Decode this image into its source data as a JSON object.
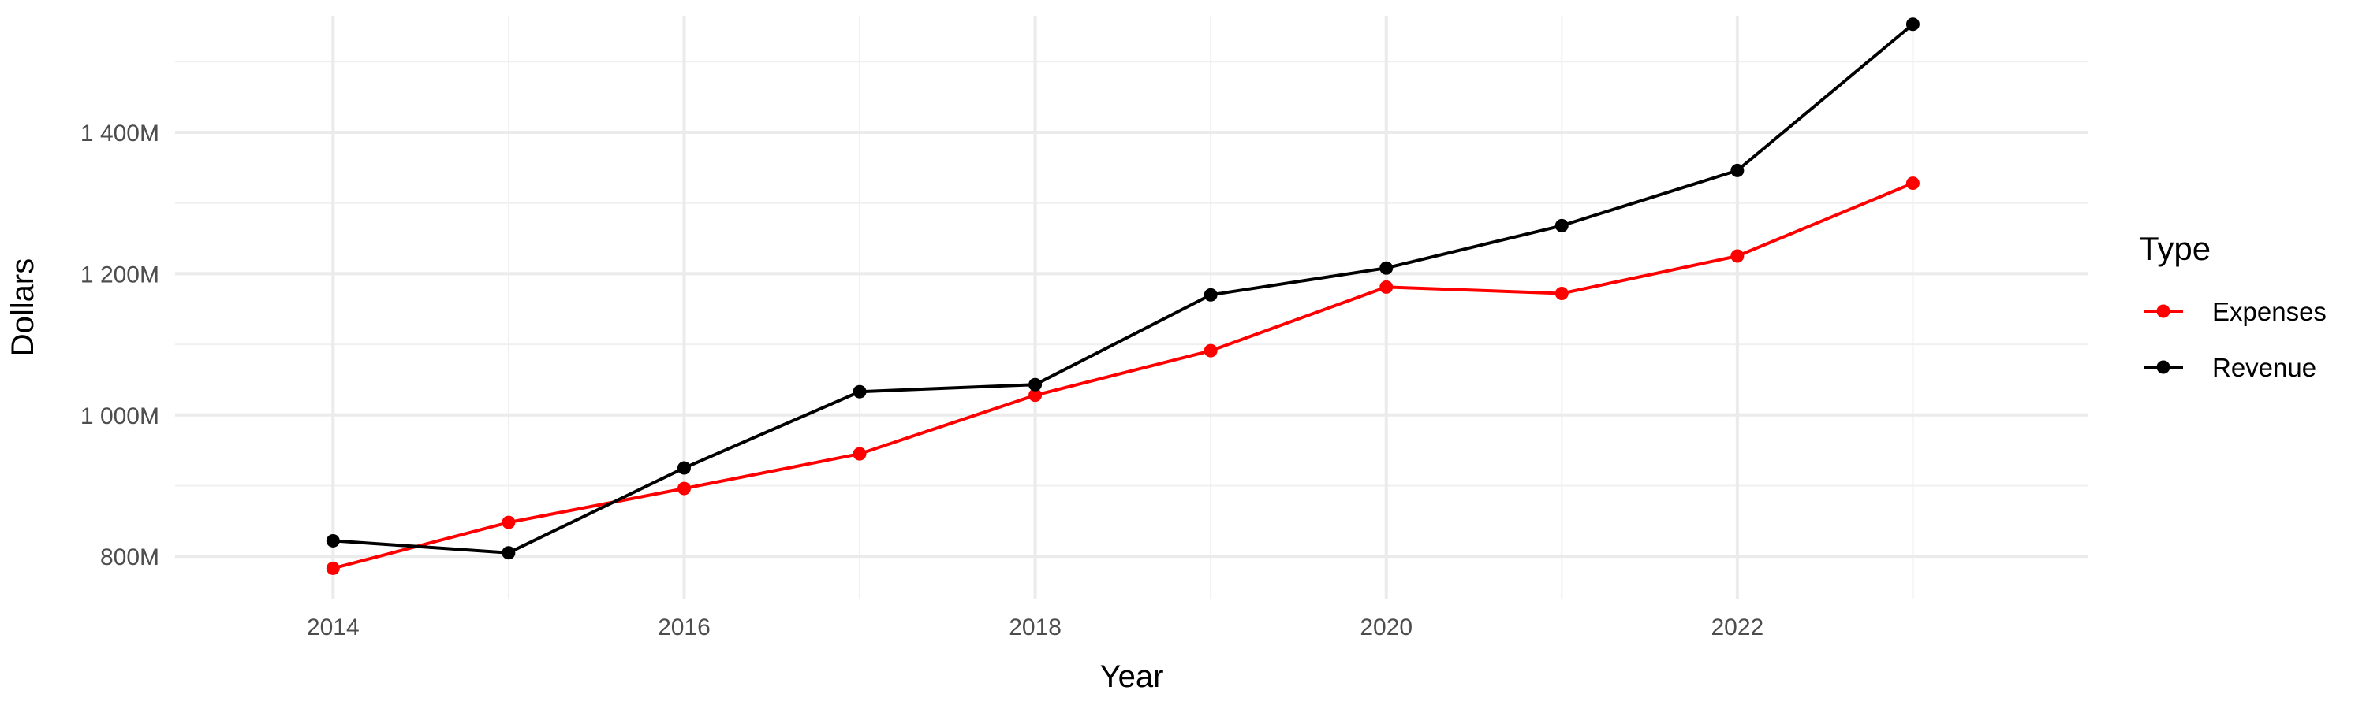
{
  "chart_data": {
    "type": "line",
    "title": "",
    "xlabel": "Year",
    "ylabel": "Dollars",
    "x": [
      2014,
      2015,
      2016,
      2017,
      2018,
      2019,
      2020,
      2021,
      2022,
      2023
    ],
    "xlim": [
      2013.1,
      2024.0
    ],
    "ylim": [
      740,
      1565
    ],
    "x_major_ticks": [
      2014,
      2016,
      2018,
      2020,
      2022
    ],
    "x_minor_ticks": [
      2015,
      2017,
      2019,
      2021,
      2023
    ],
    "x_tick_labels": [
      "2014",
      "2016",
      "2018",
      "2020",
      "2022"
    ],
    "y_major_ticks": [
      800,
      1000,
      1200,
      1400
    ],
    "y_minor_ticks": [
      900,
      1100,
      1300,
      1500
    ],
    "y_tick_labels": [
      "800M",
      "1 000M",
      "1 200M",
      "1 400M"
    ],
    "grid": true,
    "series": [
      {
        "name": "Expenses",
        "color": "#ff0000",
        "values": [
          783,
          848,
          896,
          945,
          1028,
          1091,
          1181,
          1172,
          1225,
          1328
        ]
      },
      {
        "name": "Revenue",
        "color": "#000000",
        "values": [
          822,
          805,
          925,
          1033,
          1043,
          1170,
          1208,
          1268,
          1346,
          1553
        ]
      }
    ],
    "legend": {
      "title": "Type",
      "position": "right"
    }
  }
}
